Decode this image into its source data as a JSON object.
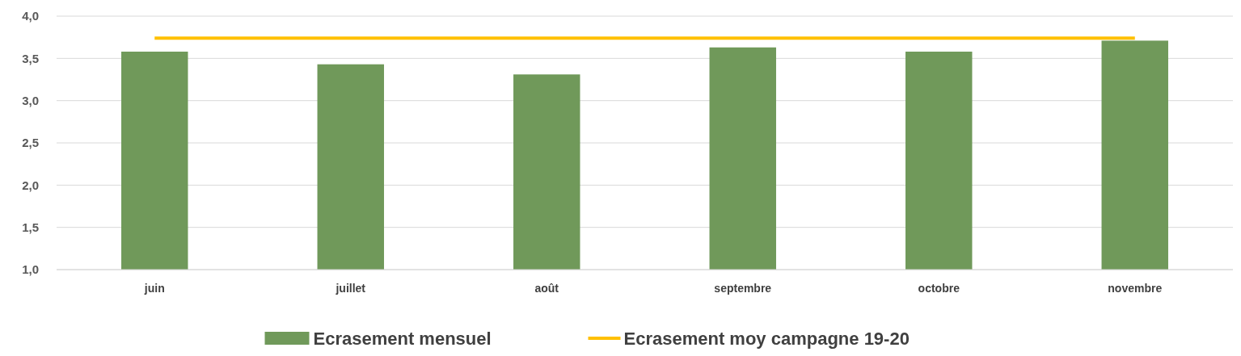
{
  "chart_data": {
    "type": "bar",
    "categories": [
      "juin",
      "juillet",
      "août",
      "septembre",
      "octobre",
      "novembre"
    ],
    "series": [
      {
        "name": "Ecrasement mensuel",
        "color": "#70995a",
        "values": [
          3.58,
          3.43,
          3.31,
          3.63,
          3.58,
          3.71
        ]
      },
      {
        "name": "Ecrasement moy campagne 19-20",
        "type": "line",
        "color": "#ffc000",
        "values": [
          3.74,
          3.74,
          3.74,
          3.74,
          3.74,
          3.74
        ]
      }
    ],
    "ylim": [
      1,
      4
    ],
    "yticks": [
      {
        "value": 1,
        "label": "1,0"
      },
      {
        "value": 1.5,
        "label": "1,5"
      },
      {
        "value": 2,
        "label": "2,0"
      },
      {
        "value": 2.5,
        "label": "2,5"
      },
      {
        "value": 3,
        "label": "3,0"
      },
      {
        "value": 3.5,
        "label": "3,5"
      },
      {
        "value": 4,
        "label": "4,0"
      }
    ],
    "grid": "y",
    "legend": "bottom"
  }
}
